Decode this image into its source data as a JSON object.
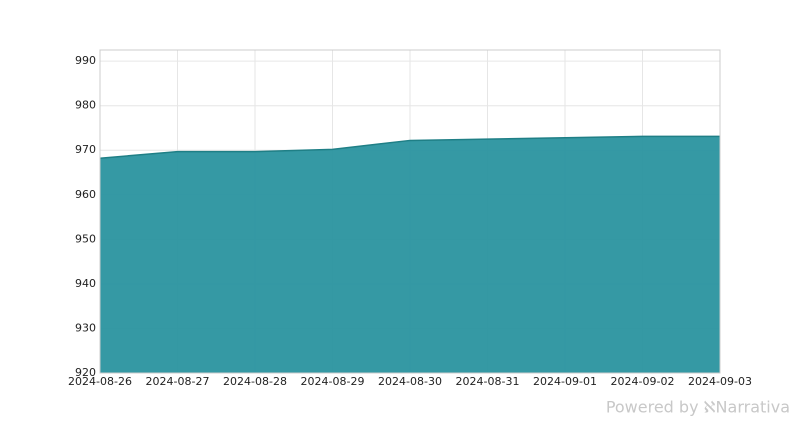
{
  "chart_data": {
    "type": "area",
    "x": [
      "2024-08-26",
      "2024-08-27",
      "2024-08-28",
      "2024-08-29",
      "2024-08-30",
      "2024-08-31",
      "2024-09-01",
      "2024-09-02",
      "2024-09-03"
    ],
    "values": [
      968.2,
      969.7,
      969.7,
      970.2,
      972.2,
      972.5,
      972.8,
      973.1,
      973.1
    ],
    "color": "#2a939f",
    "xlim": [
      "2024-08-26",
      "2024-09-03"
    ],
    "xticks": [
      "2024-08-26",
      "2024-08-27",
      "2024-08-28",
      "2024-08-29",
      "2024-08-30",
      "2024-08-31",
      "2024-09-01",
      "2024-09-02",
      "2024-09-03"
    ],
    "ylim": [
      920,
      992.5
    ],
    "yticks": [
      920,
      930,
      940,
      950,
      960,
      970,
      980,
      990
    ],
    "grid": true,
    "watermark": "Powered by ℵNarrativa"
  }
}
